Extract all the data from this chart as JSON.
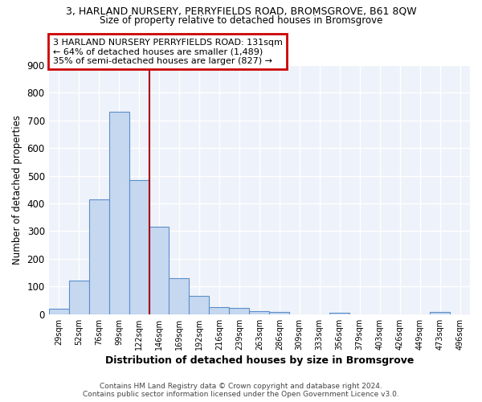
{
  "title1": "3, HARLAND NURSERY, PERRYFIELDS ROAD, BROMSGROVE, B61 8QW",
  "title2": "Size of property relative to detached houses in Bromsgrove",
  "xlabel": "Distribution of detached houses by size in Bromsgrove",
  "ylabel": "Number of detached properties",
  "footer1": "Contains HM Land Registry data © Crown copyright and database right 2024.",
  "footer2": "Contains public sector information licensed under the Open Government Licence v3.0.",
  "bin_labels": [
    "29sqm",
    "52sqm",
    "76sqm",
    "99sqm",
    "122sqm",
    "146sqm",
    "169sqm",
    "192sqm",
    "216sqm",
    "239sqm",
    "263sqm",
    "286sqm",
    "309sqm",
    "333sqm",
    "356sqm",
    "379sqm",
    "403sqm",
    "426sqm",
    "449sqm",
    "473sqm",
    "496sqm"
  ],
  "bar_values": [
    20,
    122,
    415,
    730,
    483,
    315,
    130,
    65,
    27,
    22,
    10,
    7,
    0,
    0,
    5,
    0,
    0,
    0,
    0,
    8,
    0
  ],
  "bar_color": "#c5d8f0",
  "bar_edge_color": "#5b8fc9",
  "background_color": "#eef2fa",
  "grid_color": "#ffffff",
  "vline_color": "#aa0000",
  "vline_x": 4.5,
  "annotation_text": "3 HARLAND NURSERY PERRYFIELDS ROAD: 131sqm\n← 64% of detached houses are smaller (1,489)\n35% of semi-detached houses are larger (827) →",
  "annotation_box_facecolor": "#ffffff",
  "annotation_border_color": "#cc0000",
  "ylim": [
    0,
    900
  ],
  "yticks": [
    0,
    100,
    200,
    300,
    400,
    500,
    600,
    700,
    800,
    900
  ]
}
